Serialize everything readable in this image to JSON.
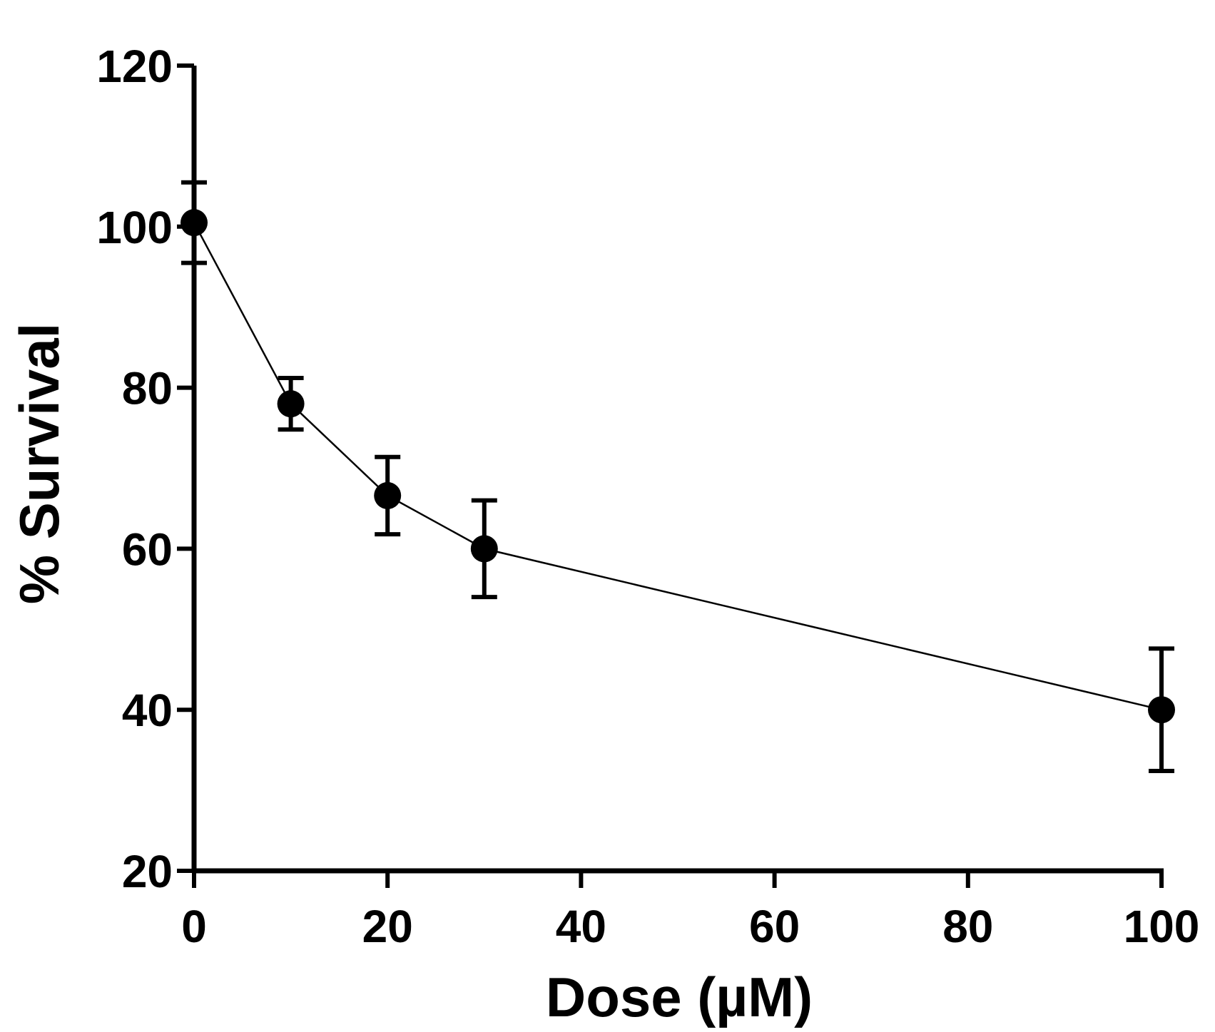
{
  "chart_data": {
    "type": "line",
    "title": "",
    "xlabel": "Dose (µM)",
    "ylabel": "% Survival",
    "xlim": [
      0,
      100
    ],
    "ylim": [
      20,
      120
    ],
    "x_ticks": [
      0,
      20,
      40,
      60,
      80,
      100
    ],
    "y_ticks": [
      20,
      40,
      60,
      80,
      100,
      120
    ],
    "x_tick_labels": [
      "0",
      "20",
      "40",
      "60",
      "80",
      "100"
    ],
    "y_tick_labels": [
      "20",
      "40",
      "60",
      "80",
      "100",
      "120"
    ],
    "grid": false,
    "legend": "none",
    "series": [
      {
        "name": "% Survival",
        "x": [
          0,
          10,
          20,
          30,
          100
        ],
        "y": [
          100.5,
          78,
          66.6,
          60,
          40
        ],
        "error": [
          5.0,
          3.2,
          4.8,
          6.0,
          7.6
        ]
      }
    ],
    "colors": {
      "line": "#000000",
      "marker": "#000000",
      "axis": "#000000"
    }
  }
}
